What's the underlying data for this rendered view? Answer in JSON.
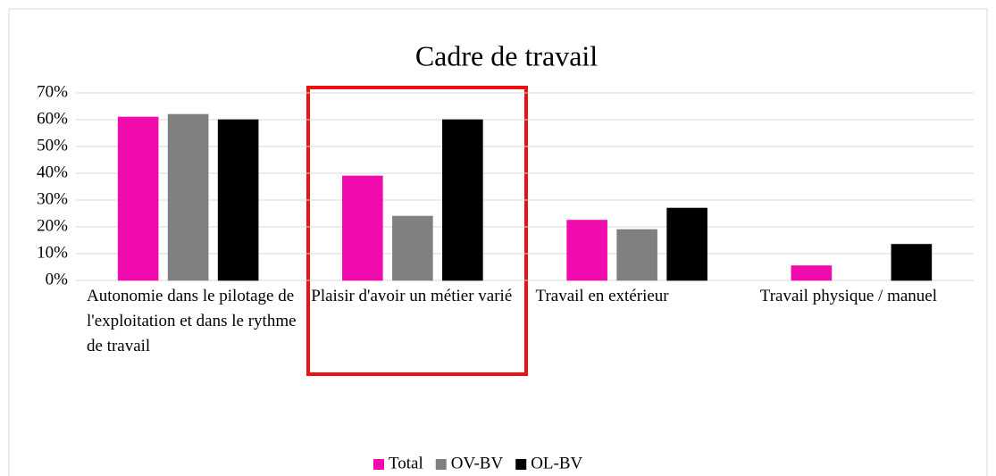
{
  "chart_data": {
    "type": "bar",
    "title": "Cadre de travail",
    "categories": [
      "Autonomie dans le pilotage de l'exploitation et dans le rythme de travail",
      "Plaisir d'avoir un métier varié",
      "Travail en extérieur",
      "Travail physique / manuel"
    ],
    "series": [
      {
        "name": "Total",
        "color": "#f00cac",
        "values": [
          61,
          39,
          22.5,
          5.5
        ]
      },
      {
        "name": "OV-BV",
        "color": "#808080",
        "values": [
          62,
          24,
          19,
          0
        ]
      },
      {
        "name": "OL-BV",
        "color": "#000000",
        "values": [
          60,
          60,
          27,
          13.5
        ]
      }
    ],
    "ylim": [
      0,
      70
    ],
    "yticks": [
      {
        "value": 0,
        "label": "0%"
      },
      {
        "value": 10,
        "label": "10%"
      },
      {
        "value": 20,
        "label": "20%"
      },
      {
        "value": 30,
        "label": "30%"
      },
      {
        "value": 40,
        "label": "40%"
      },
      {
        "value": 50,
        "label": "50%"
      },
      {
        "value": 60,
        "label": "60%"
      },
      {
        "value": 70,
        "label": "70%"
      }
    ],
    "grid": true,
    "legend": "bottom"
  }
}
